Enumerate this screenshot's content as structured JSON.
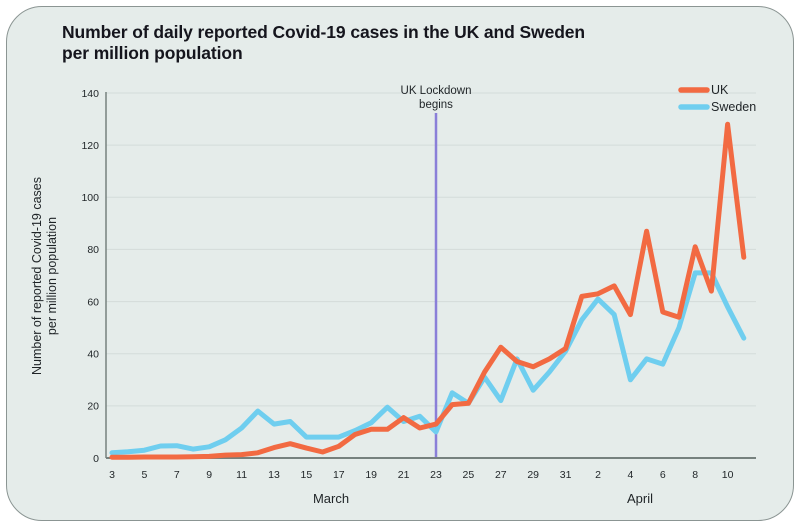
{
  "card": {
    "title_line1": "Number of daily reported Covid-19 cases in the UK and Sweden",
    "title_line2": "per million population"
  },
  "colors": {
    "uk": "#F26A42",
    "sweden": "#6FCEEF",
    "lockdown": "#8A7FD8",
    "card_background": "#E5ECEA",
    "grid": "#D3DBD9",
    "axis": "#76817E",
    "text": "#1F2427"
  },
  "chart_data": {
    "type": "line",
    "title": "Number of daily reported Covid-19 cases in the UK and Sweden per million population",
    "x_axis": {
      "month_labels": [
        "March",
        "April"
      ],
      "start_date_label": "March 3",
      "end_date_label": "April 11",
      "ticks": [
        {
          "label": "3",
          "index": 0
        },
        {
          "label": "5",
          "index": 2
        },
        {
          "label": "7",
          "index": 4
        },
        {
          "label": "9",
          "index": 6
        },
        {
          "label": "11",
          "index": 8
        },
        {
          "label": "13",
          "index": 10
        },
        {
          "label": "15",
          "index": 12
        },
        {
          "label": "17",
          "index": 14
        },
        {
          "label": "19",
          "index": 16
        },
        {
          "label": "21",
          "index": 18
        },
        {
          "label": "23",
          "index": 20
        },
        {
          "label": "25",
          "index": 22
        },
        {
          "label": "27",
          "index": 24
        },
        {
          "label": "29",
          "index": 26
        },
        {
          "label": "31",
          "index": 28
        },
        {
          "label": "2",
          "index": 30
        },
        {
          "label": "4",
          "index": 32
        },
        {
          "label": "6",
          "index": 34
        },
        {
          "label": "8",
          "index": 36
        },
        {
          "label": "10",
          "index": 38
        }
      ]
    },
    "y_axis": {
      "label_line1": "Number of reported Covid-19 cases",
      "label_line2": "per million population",
      "ticks": [
        0,
        20,
        40,
        60,
        80,
        100,
        120,
        140
      ],
      "ylim": [
        0,
        140
      ],
      "grid": true
    },
    "annotation": {
      "line1": "UK Lockdown",
      "line2": "begins",
      "at_date": "March 23",
      "index": 20
    },
    "legend_position": "top-right",
    "series": [
      {
        "name": "UK",
        "color": "#F26A42",
        "values": [
          0.3,
          0.3,
          0.4,
          0.4,
          0.4,
          0.5,
          0.6,
          1.1,
          1.3,
          2,
          4,
          5.5,
          3.8,
          2.3,
          4.5,
          9,
          11,
          11,
          15.5,
          11.5,
          13,
          20.5,
          21,
          33,
          42.5,
          37,
          35,
          38,
          42,
          62,
          63,
          66,
          55,
          87,
          56,
          54,
          81,
          64,
          128,
          77
        ]
      },
      {
        "name": "Sweden",
        "color": "#6FCEEF",
        "values": [
          2,
          2.4,
          3,
          4.6,
          4.7,
          3.4,
          4.3,
          7,
          11.5,
          18,
          13,
          14,
          8,
          8,
          8,
          10.5,
          13.5,
          19.5,
          14,
          16,
          10,
          25,
          21,
          31,
          22,
          38,
          26,
          33,
          41,
          53,
          61,
          55,
          30,
          38,
          36,
          50,
          71,
          71,
          58,
          46
        ]
      }
    ]
  }
}
